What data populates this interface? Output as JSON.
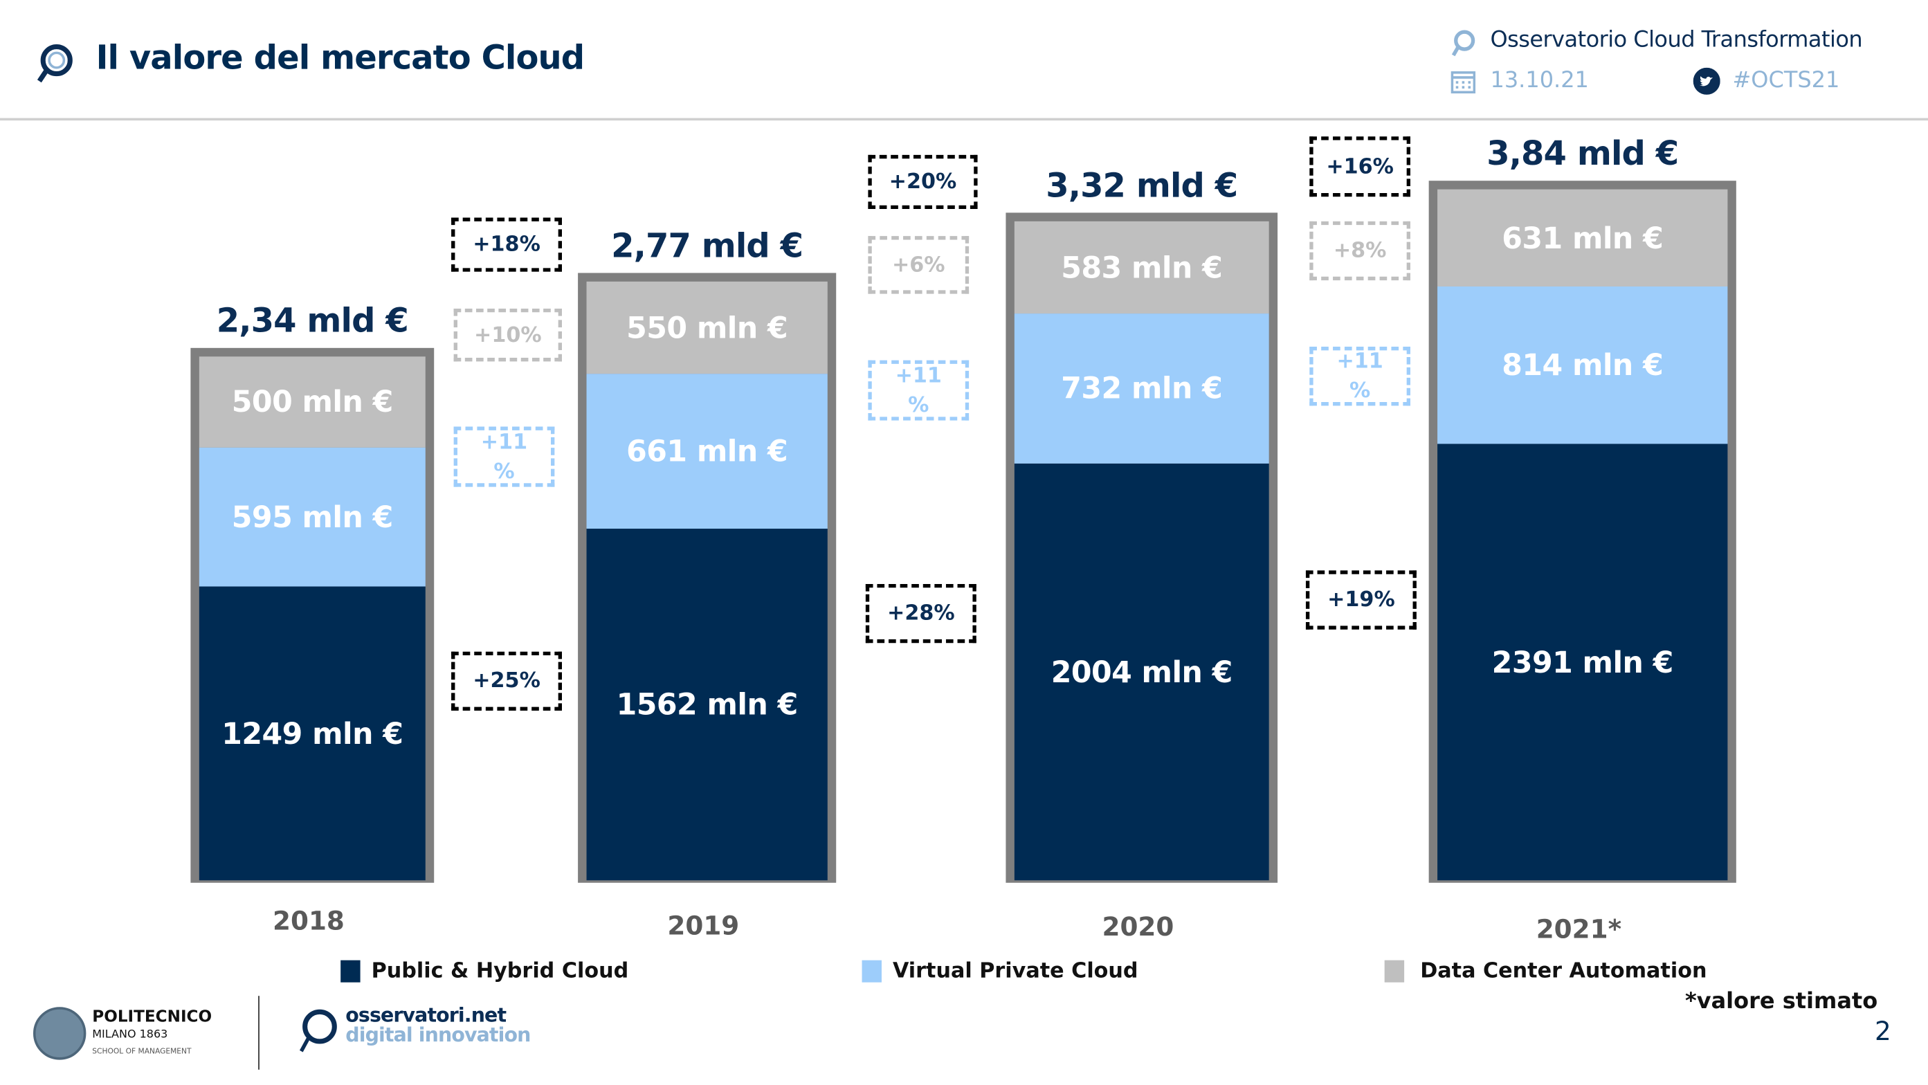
{
  "header": {
    "title": "Il valore del mercato Cloud",
    "observatory": "Osservatorio Cloud Transformation",
    "date": "13.10.21",
    "hashtag": "#OCTS21"
  },
  "chart_data": {
    "type": "bar",
    "stacked": true,
    "categories": [
      "2018",
      "2019",
      "2020",
      "2021*"
    ],
    "unit": "mln €",
    "series": [
      {
        "name": "Public & Hybrid Cloud",
        "color": "#002b53",
        "values": [
          1249,
          1562,
          2004,
          2391
        ],
        "labels": [
          "1249 mln €",
          "1562 mln €",
          "2004 mln €",
          "2391 mln €"
        ],
        "growth": [
          "+25%",
          "+28%",
          "+19%"
        ]
      },
      {
        "name": "Virtual Private Cloud",
        "color": "#9dcdfb",
        "values": [
          595,
          661,
          732,
          814
        ],
        "labels": [
          "595 mln €",
          "661 mln €",
          "732 mln €",
          "814 mln €"
        ],
        "growth": [
          "+11 %",
          "+11 %",
          "+11 %"
        ]
      },
      {
        "name": "Data Center Automation",
        "color": "#bfbfbf",
        "values": [
          500,
          550,
          583,
          631
        ],
        "labels": [
          "500 mln €",
          "550 mln €",
          "583 mln €",
          "631 mln €"
        ],
        "growth": [
          "+10%",
          "+6%",
          "+8%"
        ]
      }
    ],
    "totals": [
      "2,34 mld €",
      "2,77 mld €",
      "3,32 mld €",
      "3,84 mld €"
    ],
    "total_growth": [
      "+18%",
      "+20%",
      "+16%"
    ],
    "legend": "bottom"
  },
  "footer": {
    "note": "*valore stimato",
    "page": "2",
    "logo_polimi": [
      "POLITECNICO",
      "MILANO 1863",
      "SCHOOL OF MANAGEMENT"
    ],
    "logo_osservatori": [
      "osservatori.net",
      "digital innovation"
    ]
  }
}
